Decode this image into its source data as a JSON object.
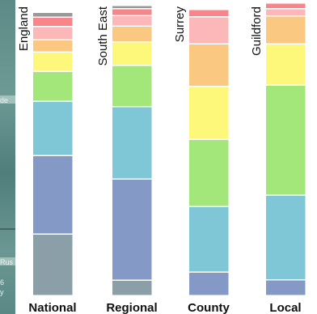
{
  "chart_data": {
    "type": "bar",
    "stacked": true,
    "normalized_to": 100,
    "categories": [
      "National",
      "Regional",
      "County",
      "Local"
    ],
    "bar_labels": [
      "England",
      "South East",
      "Surrey",
      "Guildford"
    ],
    "segment_colors": [
      "#8a9fa8",
      "#8599c7",
      "#7fc6d6",
      "#a3e77a",
      "#fdf77a",
      "#fbc882",
      "#fcb8b9",
      "#f7858a",
      "#999999"
    ],
    "series": [
      {
        "values": [
          21.2,
          5.3,
          0,
          0
        ]
      },
      {
        "values": [
          27.2,
          35.0,
          8.0,
          5.4
        ]
      },
      {
        "values": [
          18.7,
          25.1,
          22.7,
          29.3
        ]
      },
      {
        "values": [
          10.4,
          14.2,
          23.3,
          38.0
        ]
      },
      {
        "values": [
          6.7,
          8.1,
          18.3,
          14.3
        ]
      },
      {
        "values": [
          4.2,
          5.5,
          14.8,
          9.7
        ]
      },
      {
        "values": [
          4.7,
          3.7,
          9.3,
          2.6
        ]
      },
      {
        "values": [
          3.2,
          2.4,
          2.6,
          1.9
        ]
      },
      {
        "values": [
          1.7,
          1.1,
          0,
          0
        ]
      }
    ],
    "ylim": [
      0,
      100
    ],
    "grid": false,
    "legend": "none"
  },
  "map_fragments": [
    "de",
    "6",
    "y",
    "Rus"
  ]
}
